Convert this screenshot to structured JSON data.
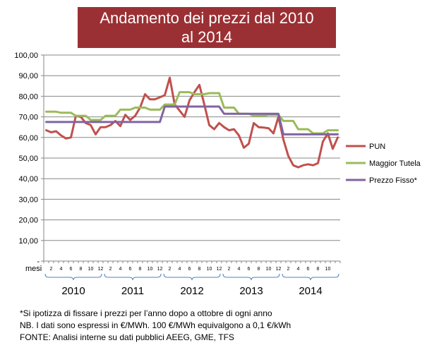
{
  "chart_data": {
    "type": "line",
    "title": "Andamento dei prezzi dal 2010 al 2014",
    "xlabel": "mesi",
    "ylim": [
      0,
      100
    ],
    "yticks": [
      "-",
      "10,00",
      "20,00",
      "30,00",
      "40,00",
      "50,00",
      "60,00",
      "70,00",
      "80,00",
      "90,00",
      "100,00"
    ],
    "month_ticks": [
      "2",
      "4",
      "6",
      "8",
      "10",
      "12",
      "2",
      "4",
      "6",
      "8",
      "10",
      "12",
      "2",
      "4",
      "6",
      "8",
      "10",
      "12",
      "2",
      "4",
      "6",
      "8",
      "10",
      "12",
      "2",
      "4",
      "6",
      "8",
      "10"
    ],
    "years": [
      "2010",
      "2011",
      "2012",
      "2013",
      "2014"
    ],
    "grid": true,
    "legend_position": "right",
    "colors": {
      "PUN": "#c0504d",
      "Maggior Tutela": "#9bbb59",
      "Prezzo Fisso*": "#8064a2"
    },
    "series": [
      {
        "name": "PUN",
        "values": [
          63.5,
          62.5,
          63,
          61,
          59.5,
          60,
          70.5,
          70,
          67,
          66,
          61.5,
          65,
          65,
          66,
          68,
          65.5,
          71,
          68.5,
          70.5,
          74.5,
          81,
          78.5,
          78.5,
          79.5,
          80.5,
          89,
          76,
          73,
          70,
          78,
          82,
          85.5,
          76,
          66,
          64,
          67,
          65,
          63.5,
          64,
          61,
          55,
          57,
          67,
          65,
          64.8,
          64.5,
          62,
          70,
          59,
          51,
          46.5,
          45.5,
          46.5,
          47,
          46.5,
          47.5,
          58,
          62,
          54.5,
          60
        ]
      },
      {
        "name": "Maggior Tutela",
        "values": [
          72.5,
          72.5,
          72.5,
          72,
          72,
          72,
          70.5,
          70.5,
          70.5,
          68.5,
          68.5,
          68.5,
          70.5,
          70.5,
          70.5,
          73.5,
          73.5,
          73.5,
          74.5,
          74.5,
          74.5,
          73.5,
          73.5,
          73.5,
          76,
          76,
          76,
          82,
          82,
          82,
          81,
          81,
          81,
          81.5,
          81.5,
          81.5,
          74.5,
          74.5,
          74.5,
          71.5,
          71.5,
          71.5,
          70.5,
          70.5,
          70.5,
          71,
          71,
          71,
          68,
          68,
          68,
          64,
          64,
          64,
          62,
          62,
          62,
          63.5,
          63.5,
          63.5
        ]
      },
      {
        "name": "Prezzo Fisso*",
        "values": [
          67.5,
          67.5,
          67.5,
          67.5,
          67.5,
          67.5,
          67.5,
          67.5,
          67.5,
          67.5,
          67.5,
          67.5,
          67.5,
          67.5,
          67.5,
          67.5,
          67.5,
          67.5,
          67.5,
          67.5,
          67.5,
          67.5,
          67.5,
          67.5,
          75,
          75,
          75,
          75,
          75,
          75,
          75,
          75,
          75,
          75,
          75,
          75,
          71.5,
          71.5,
          71.5,
          71.5,
          71.5,
          71.5,
          71.5,
          71.5,
          71.5,
          71.5,
          71.5,
          71.5,
          61.5,
          61.5,
          61.5,
          61.5,
          61.5,
          61.5,
          61.5,
          61.5,
          61.5,
          61.5,
          61.5,
          61.5
        ]
      }
    ]
  },
  "notes": [
    "*Si ipotizza di fissare i prezzi per l’anno dopo a ottobre di ogni anno",
    "NB. I dati sono espressi in €/MWh. 100  €/MWh equivalgono a 0,1  €/kWh",
    "FONTE: Analisi interne su dati pubblici AEEG, GME, TFS"
  ]
}
